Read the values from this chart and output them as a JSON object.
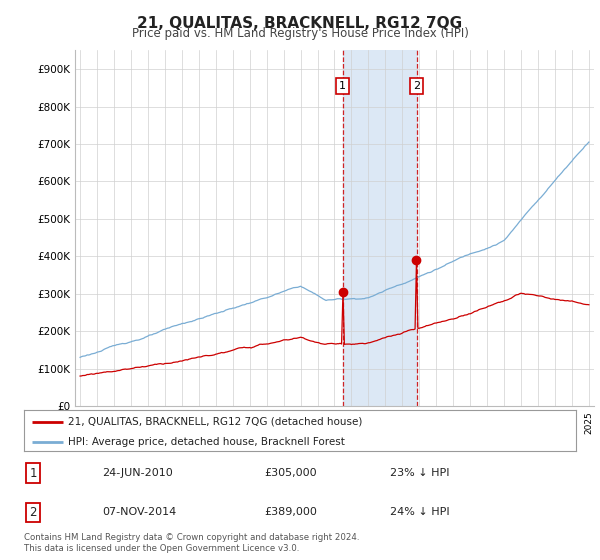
{
  "title": "21, QUALITAS, BRACKNELL, RG12 7QG",
  "subtitle": "Price paid vs. HM Land Registry's House Price Index (HPI)",
  "ylim": [
    0,
    950000
  ],
  "yticks": [
    0,
    100000,
    200000,
    300000,
    400000,
    500000,
    600000,
    700000,
    800000,
    900000
  ],
  "ytick_labels": [
    "£0",
    "£100K",
    "£200K",
    "£300K",
    "£400K",
    "£500K",
    "£600K",
    "£700K",
    "£800K",
    "£900K"
  ],
  "hpi_color": "#7aadd4",
  "price_color": "#cc0000",
  "t1_year": 2010.48,
  "t2_year": 2014.85,
  "marker1_price": 305000,
  "marker2_price": 389000,
  "legend_label1": "21, QUALITAS, BRACKNELL, RG12 7QG (detached house)",
  "legend_label2": "HPI: Average price, detached house, Bracknell Forest",
  "table_row1_num": "1",
  "table_row1_date": "24-JUN-2010",
  "table_row1_price": "£305,000",
  "table_row1_hpi": "23% ↓ HPI",
  "table_row2_num": "2",
  "table_row2_date": "07-NOV-2014",
  "table_row2_price": "£389,000",
  "table_row2_hpi": "24% ↓ HPI",
  "footer": "Contains HM Land Registry data © Crown copyright and database right 2024.\nThis data is licensed under the Open Government Licence v3.0.",
  "background_color": "#ffffff",
  "grid_color": "#d0d0d0",
  "shade_color": "#dce8f5"
}
